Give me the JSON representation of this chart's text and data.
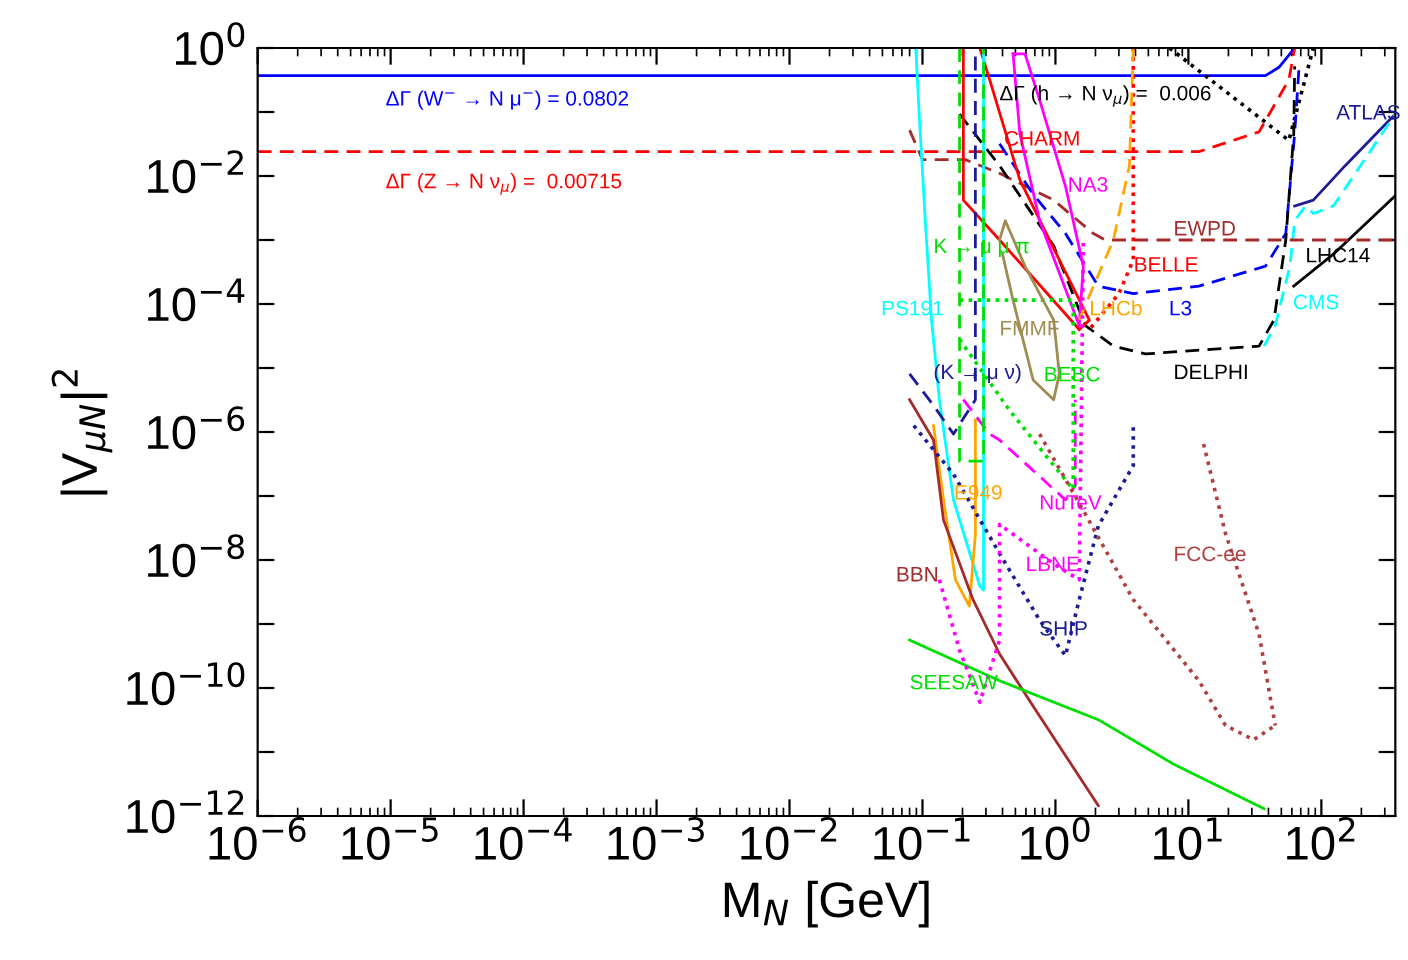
{
  "chart_data": {
    "type": "line",
    "xlabel": "M$_{N}$ [GeV]",
    "ylabel": "|V$_{μN}$|$^{2}$",
    "log": "xy",
    "grid": false,
    "legend": false,
    "marker": "none",
    "xlim": [
      1e-06,
      360
    ],
    "ylim": [
      1e-12,
      1
    ],
    "xticks": [
      {
        "value": 1e-06,
        "label": "10$^{−6}$"
      },
      {
        "value": 1e-05,
        "label": "10$^{−5}$"
      },
      {
        "value": 0.0001,
        "label": "10$^{−4}$"
      },
      {
        "value": 0.001,
        "label": "10$^{−3}$"
      },
      {
        "value": 0.01,
        "label": "10$^{−2}$"
      },
      {
        "value": 0.1,
        "label": "10$^{−1}$"
      },
      {
        "value": 1,
        "label": "10$^{0}$"
      },
      {
        "value": 10,
        "label": "10$^{1}$"
      },
      {
        "value": 100,
        "label": "10$^{2}$"
      }
    ],
    "yticks": [
      {
        "value": 1e-12,
        "label": "10$^{−12}$"
      },
      {
        "value": 1e-11,
        "label": null
      },
      {
        "value": 1e-10,
        "label": "10$^{−10}$"
      },
      {
        "value": 1e-09,
        "label": null
      },
      {
        "value": 1e-08,
        "label": "10$^{−8}$"
      },
      {
        "value": 1e-07,
        "label": null
      },
      {
        "value": 1e-06,
        "label": "10$^{−6}$"
      },
      {
        "value": 1e-05,
        "label": null
      },
      {
        "value": 0.0001,
        "label": "10$^{−4}$"
      },
      {
        "value": 0.001,
        "label": null
      },
      {
        "value": 0.01,
        "label": "10$^{−2}$"
      },
      {
        "value": 0.1,
        "label": null
      },
      {
        "value": 1,
        "label": "10$^{0}$"
      }
    ],
    "series": [
      {
        "color": "#0000ff",
        "line_style": "solid",
        "x": [
          1e-06,
          38,
          48,
          63
        ],
        "values": [
          0.37,
          0.37,
          0.5,
          1.0
        ]
      },
      {
        "color": "#ff0000",
        "line_style": "dashed",
        "x": [
          1e-06,
          12,
          34,
          57,
          63
        ],
        "values": [
          0.024,
          0.024,
          0.049,
          0.32,
          1.0
        ]
      },
      {
        "color": "#000000",
        "line_style": "dotted",
        "x": [
          7.2,
          57,
          87
        ],
        "values": [
          1.0,
          0.036,
          1.0
        ]
      },
      {
        "color": "#1c1c96",
        "line_style": "solid",
        "x": [
          63,
          87,
          151,
          360
        ],
        "values": [
          0.0034,
          0.0042,
          0.0145,
          0.093
        ]
      },
      {
        "color": "#00ffff",
        "line_style": "dashed",
        "x": [
          37,
          45,
          58,
          63,
          76,
          87,
          123,
          360
        ],
        "values": [
          2.2e-05,
          4.6e-05,
          0.00039,
          0.002,
          0.0034,
          0.0026,
          0.0034,
          0.093
        ]
      },
      {
        "color": "#000000",
        "line_style": "solid",
        "x": [
          62,
          123,
          360
        ],
        "values": [
          0.00019,
          0.0006,
          0.0049
        ]
      },
      {
        "color": "#a52a2a",
        "line_style": "dashed",
        "x": [
          0.08,
          0.1,
          0.21,
          0.38,
          0.97,
          1.93,
          2.38,
          360
        ],
        "values": [
          0.052,
          0.018,
          0.018,
          0.011,
          0.0042,
          0.00126,
          0.001,
          0.001
        ]
      },
      {
        "color": "#0000ff",
        "line_style": "dashed",
        "x": [
          0.38,
          0.68,
          1.19,
          2.1,
          3.85,
          12,
          38,
          54,
          63,
          68
        ],
        "values": [
          0.032,
          0.0052,
          0.00126,
          0.00019,
          0.000145,
          0.00019,
          0.00039,
          0.00126,
          0.046,
          0.52
        ]
      },
      {
        "color": "#000000",
        "line_style": "dashed",
        "x": [
          0.19,
          0.38,
          0.97,
          1.68,
          2.73,
          4.75,
          34,
          44,
          54,
          62,
          63
        ],
        "values": [
          0.093,
          0.0145,
          0.00081,
          4.6e-05,
          2.2e-05,
          1.66e-05,
          2.2e-05,
          5.6e-05,
          0.001,
          0.046,
          0.52
        ]
      },
      {
        "color": "#ff0000",
        "line_style": "solid",
        "x": [
          0.203,
          0.203,
          0.38,
          1.51
        ],
        "values": [
          1.0,
          0.0042,
          0.001,
          4e-05
        ]
      },
      {
        "color": "#ff0000",
        "line_style": "solid",
        "x": [
          0.27,
          0.32,
          0.54,
          1.07,
          1.8,
          1.51
        ],
        "values": [
          1.0,
          0.32,
          0.0087,
          0.00049,
          5.6e-05,
          4e-05
        ]
      },
      {
        "color": "#ff00ff",
        "line_style": "solid",
        "x": [
          0.48,
          0.54,
          0.76,
          1.51
        ],
        "values": [
          0.81,
          0.046,
          0.002,
          4.6e-05
        ]
      },
      {
        "color": "#ff00ff",
        "line_style": "solid",
        "x": [
          0.48,
          0.59,
          0.76,
          1.19,
          1.62,
          1.51
        ],
        "values": [
          0.81,
          0.81,
          0.155,
          0.0069,
          0.00039,
          4.6e-05
        ]
      },
      {
        "color": "#ff0000",
        "line_style": "dotted",
        "x": [
          3.85,
          3.85,
          3.0,
          1.8
        ],
        "values": [
          1.0,
          0.00049,
          0.000145,
          4e-05
        ]
      },
      {
        "color": "#ffa500",
        "line_style": "dashed",
        "x": [
          3.85,
          3.6,
          2.73,
          1.93,
          1.51
        ],
        "values": [
          1.0,
          0.0145,
          0.001,
          0.00019,
          5.6e-05
        ]
      },
      {
        "color": "#00ffff",
        "line_style": "solid",
        "x": [
          0.089,
          0.095,
          0.105,
          0.117,
          0.134,
          0.171,
          0.27,
          0.288,
          0.288,
          0.288,
          0.288
        ],
        "values": [
          1.0,
          0.075,
          0.002,
          5.6e-05,
          3.2e-06,
          8.7e-08,
          3.9e-09,
          3.4e-09,
          1.8e-07,
          0.000115,
          1.0
        ]
      },
      {
        "color": "#ffa500",
        "line_style": "solid",
        "x": [
          0.121,
          0.144,
          0.177,
          0.225,
          0.25,
          0.25
        ],
        "values": [
          1.26e-06,
          8.7e-08,
          4.9e-09,
          1.9e-09,
          2.5e-08,
          1.55e-06
        ]
      },
      {
        "color": "#a52a2a",
        "line_style": "solid",
        "x": [
          0.08,
          0.121,
          0.144,
          0.24,
          0.38,
          0.68,
          2.1
        ],
        "values": [
          3.2e-06,
          7.5e-07,
          4.2e-08,
          2.4e-09,
          3.4e-10,
          5.2e-11,
          1.45e-12
        ]
      },
      {
        "color": "#00e000",
        "line_style": "solid",
        "x": [
          0.08,
          0.38,
          2.1,
          7.7,
          37
        ],
        "values": [
          5.6e-10,
          1.3e-10,
          3.2e-11,
          6.5e-12,
          1.3e-12
        ]
      },
      {
        "color": "#1c1c96",
        "line_style": "dotted",
        "x": [
          0.086,
          0.171,
          0.38,
          0.76,
          1.19,
          1.51,
          2.1,
          3.85,
          3.85
        ],
        "values": [
          1.26e-06,
          2.2e-07,
          1.26e-08,
          1.15e-09,
          3.2e-10,
          2.4e-09,
          3.4e-08,
          3e-07,
          1.26e-06
        ]
      },
      {
        "color": "#ff00ff",
        "line_style": "dotted",
        "x": [
          0.134,
          0.19,
          0.27,
          0.38,
          0.38,
          0.97,
          1.51,
          1.57,
          1.62
        ],
        "values": [
          4.9e-09,
          3.9e-10,
          6e-11,
          5.6e-10,
          3.6e-08,
          8.7e-09,
          4.9e-09,
          3.2e-06,
          0.001
        ]
      },
      {
        "color": "#ff00ff",
        "line_style": "dashed",
        "x": [
          0.203,
          0.32,
          0.38,
          1.19,
          1.41,
          1.41
        ],
        "values": [
          3.2e-06,
          9.3e-07,
          7.5e-07,
          8.7e-08,
          1.45e-07,
          3.2e-06
        ]
      },
      {
        "color": "#00e000",
        "line_style": "dotted",
        "x": [
          0.19,
          1.36,
          1.36
        ],
        "values": [
          0.000115,
          0.000115,
          1.26e-07
        ]
      },
      {
        "color": "#00e000",
        "line_style": "dotted",
        "x": [
          0.19,
          0.45,
          1.36
        ],
        "values": [
          2.8e-05,
          2.2e-06,
          1.26e-07
        ]
      },
      {
        "color": "#a08c50",
        "line_style": "solid",
        "x": [
          0.38,
          0.42,
          0.59,
          0.97,
          1.07,
          0.97,
          0.68,
          0.48,
          0.4
        ],
        "values": [
          0.001,
          0.002,
          0.00039,
          5.6e-05,
          8.1e-06,
          3.2e-06,
          6.5e-06,
          0.000115,
          0.0006
        ]
      },
      {
        "color": "#00e000",
        "line_style": "dashed",
        "x": [
          0.19,
          0.19,
          0.288,
          0.288
        ],
        "values": [
          1.0,
          3.5e-07,
          3.5e-07,
          1.0
        ]
      },
      {
        "color": "#1c1c96",
        "line_style": "dashed",
        "x": [
          0.08,
          0.121,
          0.171,
          0.25,
          0.25
        ],
        "values": [
          8.1e-06,
          2.6e-06,
          9.3e-07,
          3.2e-06,
          1.0
        ]
      },
      {
        "color": "#b04040",
        "line_style": "dotted",
        "x": [
          13,
          19,
          34,
          45
        ],
        "values": [
          6.5e-07,
          2.6e-08,
          6.9e-10,
          2.6e-11
        ]
      },
      {
        "color": "#b04040",
        "line_style": "dotted",
        "x": [
          0.76,
          1.68,
          3.85,
          12,
          19,
          31,
          45
        ],
        "values": [
          9.3e-07,
          5.2e-08,
          2.4e-09,
          1.3e-10,
          2.6e-11,
          1.55e-11,
          2.6e-11
        ]
      }
    ],
    "annotations": [
      "ΔΓ (W$^{−}$ → N μ$^{−}$) = 0.0802",
      "ΔΓ (Z → N ν$_{μ}$) =  0.00715",
      "ΔΓ (h → N ν$_{μ}$) =  0.006",
      "ATLAS",
      "CMS",
      "LHC14",
      "EWPD",
      "L3",
      "DELPHI",
      "CHARM",
      "NA3",
      "BELLE",
      "LHCb",
      "PS191",
      "E949",
      "BBN",
      "SEESAW",
      "SHIP",
      "LBNE",
      "NuTeV",
      "BEBC",
      "FMMF",
      "K → μ μ π",
      "(K → μ ν)",
      "FCC-ee"
    ]
  }
}
